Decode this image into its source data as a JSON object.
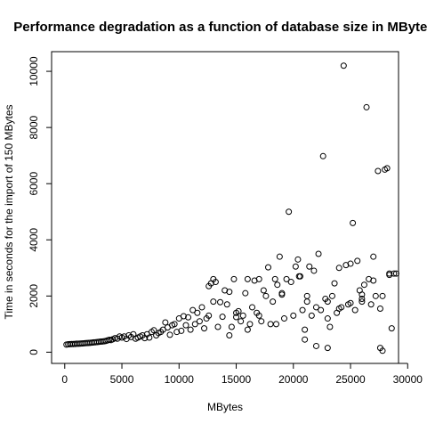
{
  "chart_data": {
    "type": "scatter",
    "title": "Performance degradation as a function of database size in MBytes",
    "xlabel": "MBytes",
    "ylabel": "Time in seconds for the import of 150 MBytes",
    "xlim": [
      -1150,
      29200
    ],
    "ylim": [
      -400,
      10700
    ],
    "x_ticks": [
      0,
      5000,
      10000,
      15000,
      20000,
      25000,
      30000
    ],
    "y_ticks": [
      0,
      2000,
      4000,
      6000,
      8000,
      10000
    ],
    "x_tick_labels": [
      "0",
      "5000",
      "10000",
      "15000",
      "20000",
      "25000",
      "30000"
    ],
    "y_tick_labels": [
      "0",
      "2000",
      "4000",
      "6000",
      "8000",
      "10000"
    ],
    "grid": false,
    "legend": "none",
    "marker": "open-circle",
    "colors": {
      "marker": "#000000",
      "axis": "#000000",
      "background": "#ffffff"
    },
    "points": [
      [
        150,
        270
      ],
      [
        300,
        280
      ],
      [
        450,
        285
      ],
      [
        600,
        290
      ],
      [
        750,
        290
      ],
      [
        900,
        295
      ],
      [
        1050,
        300
      ],
      [
        1200,
        300
      ],
      [
        1350,
        305
      ],
      [
        1500,
        310
      ],
      [
        1650,
        315
      ],
      [
        1800,
        320
      ],
      [
        1950,
        325
      ],
      [
        2100,
        330
      ],
      [
        2250,
        335
      ],
      [
        2400,
        340
      ],
      [
        2550,
        350
      ],
      [
        2700,
        355
      ],
      [
        2850,
        360
      ],
      [
        3000,
        370
      ],
      [
        3150,
        375
      ],
      [
        3300,
        380
      ],
      [
        3450,
        390
      ],
      [
        3600,
        400
      ],
      [
        3750,
        420
      ],
      [
        3900,
        440
      ],
      [
        4050,
        430
      ],
      [
        4200,
        460
      ],
      [
        4400,
        500
      ],
      [
        4600,
        480
      ],
      [
        4800,
        560
      ],
      [
        5000,
        520
      ],
      [
        5200,
        560
      ],
      [
        5400,
        470
      ],
      [
        5600,
        600
      ],
      [
        5800,
        540
      ],
      [
        6000,
        640
      ],
      [
        6200,
        480
      ],
      [
        6400,
        520
      ],
      [
        6600,
        560
      ],
      [
        6800,
        600
      ],
      [
        7000,
        500
      ],
      [
        7200,
        640
      ],
      [
        7400,
        520
      ],
      [
        7600,
        720
      ],
      [
        7800,
        780
      ],
      [
        8000,
        600
      ],
      [
        8200,
        680
      ],
      [
        8400,
        720
      ],
      [
        8600,
        800
      ],
      [
        8800,
        1060
      ],
      [
        9000,
        880
      ],
      [
        9200,
        620
      ],
      [
        9400,
        960
      ],
      [
        9600,
        1000
      ],
      [
        9800,
        720
      ],
      [
        10000,
        1200
      ],
      [
        10200,
        760
      ],
      [
        10400,
        1280
      ],
      [
        10600,
        960
      ],
      [
        10800,
        1240
      ],
      [
        11000,
        800
      ],
      [
        11200,
        1500
      ],
      [
        11400,
        1000
      ],
      [
        11600,
        1400
      ],
      [
        11800,
        1100
      ],
      [
        12000,
        1600
      ],
      [
        12200,
        850
      ],
      [
        12400,
        1200
      ],
      [
        12600,
        2350
      ],
      [
        12800,
        2450
      ],
      [
        13000,
        2600
      ],
      [
        13200,
        2500
      ],
      [
        13400,
        900
      ],
      [
        13600,
        1780
      ],
      [
        13800,
        1260
      ],
      [
        14000,
        2200
      ],
      [
        14200,
        1700
      ],
      [
        14400,
        600
      ],
      [
        14600,
        900
      ],
      [
        14800,
        2600
      ],
      [
        15000,
        1400
      ],
      [
        15200,
        1460
      ],
      [
        15400,
        1100
      ],
      [
        15600,
        1300
      ],
      [
        15800,
        2100
      ],
      [
        16000,
        800
      ],
      [
        16200,
        1000
      ],
      [
        16400,
        1600
      ],
      [
        16600,
        2550
      ],
      [
        16800,
        1400
      ],
      [
        17000,
        2600
      ],
      [
        17200,
        1100
      ],
      [
        17400,
        2200
      ],
      [
        17600,
        2000
      ],
      [
        17800,
        3020
      ],
      [
        18000,
        1000
      ],
      [
        18200,
        1800
      ],
      [
        18400,
        2600
      ],
      [
        18600,
        2400
      ],
      [
        18800,
        3400
      ],
      [
        19000,
        2100
      ],
      [
        19200,
        1200
      ],
      [
        19400,
        2600
      ],
      [
        19600,
        5000
      ],
      [
        19800,
        2500
      ],
      [
        20000,
        1300
      ],
      [
        20200,
        3050
      ],
      [
        20400,
        3300
      ],
      [
        20600,
        2700
      ],
      [
        20800,
        1500
      ],
      [
        21000,
        800
      ],
      [
        21200,
        1800
      ],
      [
        21400,
        3050
      ],
      [
        21600,
        1300
      ],
      [
        21800,
        2900
      ],
      [
        22000,
        1600
      ],
      [
        22200,
        3500
      ],
      [
        22400,
        1500
      ],
      [
        22600,
        6980
      ],
      [
        22800,
        1900
      ],
      [
        23000,
        1200
      ],
      [
        23200,
        900
      ],
      [
        23400,
        2000
      ],
      [
        23600,
        2450
      ],
      [
        23800,
        1400
      ],
      [
        24000,
        3000
      ],
      [
        24200,
        1600
      ],
      [
        24400,
        10200
      ],
      [
        24600,
        3100
      ],
      [
        24800,
        1700
      ],
      [
        25000,
        3150
      ],
      [
        25200,
        4600
      ],
      [
        25400,
        1500
      ],
      [
        25600,
        3250
      ],
      [
        25800,
        2200
      ],
      [
        26000,
        1800
      ],
      [
        26200,
        2400
      ],
      [
        26400,
        8720
      ],
      [
        26600,
        2600
      ],
      [
        26800,
        1700
      ],
      [
        27000,
        3400
      ],
      [
        27200,
        2000
      ],
      [
        27400,
        6450
      ],
      [
        27600,
        1550
      ],
      [
        27800,
        2000
      ],
      [
        28000,
        6500
      ],
      [
        28200,
        6550
      ],
      [
        28400,
        2800
      ],
      [
        28600,
        850
      ],
      [
        28800,
        2800
      ],
      [
        14400,
        2150
      ],
      [
        16000,
        2600
      ],
      [
        18500,
        1000
      ],
      [
        20500,
        2700
      ],
      [
        21000,
        450
      ],
      [
        22000,
        220
      ],
      [
        23000,
        150
      ],
      [
        26000,
        2050
      ],
      [
        27600,
        150
      ],
      [
        27800,
        50
      ],
      [
        12600,
        1300
      ],
      [
        13000,
        1800
      ],
      [
        15000,
        1250
      ],
      [
        17000,
        1300
      ],
      [
        19000,
        2050
      ],
      [
        21200,
        2000
      ],
      [
        23000,
        1800
      ],
      [
        24000,
        1550
      ],
      [
        25000,
        1750
      ],
      [
        26000,
        1900
      ],
      [
        27000,
        2550
      ],
      [
        28400,
        2750
      ],
      [
        29000,
        2800
      ]
    ]
  }
}
